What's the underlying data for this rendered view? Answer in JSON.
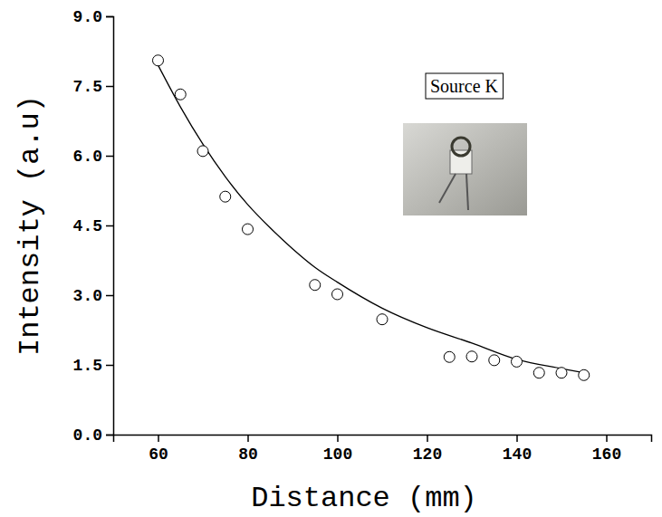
{
  "chart_data": {
    "type": "scatter",
    "x_label": "Distance (mm)",
    "y_label": "Intensity (a.u)",
    "annotations": [
      "Source K"
    ],
    "xlim": [
      50,
      170
    ],
    "xticks": [
      60,
      80,
      100,
      120,
      140,
      160
    ],
    "ylim": [
      0,
      9
    ],
    "yticks": [
      {
        "value": 0,
        "label": "0.0"
      },
      1.5,
      {
        "value": 3,
        "label": "3.0"
      },
      4.5,
      {
        "value": 6,
        "label": "6.0"
      },
      7.5,
      {
        "value": 9,
        "label": "9.0"
      }
    ],
    "grid": false,
    "series": [
      {
        "type": "scatter",
        "marker": "open-circle",
        "color": "#000000",
        "x": [
          60,
          65,
          70,
          75,
          80,
          95,
          100,
          110,
          125,
          130,
          135,
          140,
          145,
          150,
          155
        ],
        "values": [
          8.05,
          7.32,
          6.1,
          5.12,
          4.42,
          3.22,
          3.02,
          2.48,
          1.67,
          1.68,
          1.6,
          1.57,
          1.33,
          1.33,
          1.28
        ]
      },
      {
        "type": "line",
        "line_style": "solid",
        "color": "#000000",
        "x": [
          60,
          65,
          70,
          75,
          80,
          85,
          90,
          95,
          100,
          110,
          120,
          130,
          140,
          150,
          155
        ],
        "values": [
          7.95,
          7.05,
          6.25,
          5.55,
          4.95,
          4.45,
          4.0,
          3.6,
          3.28,
          2.72,
          2.3,
          1.97,
          1.62,
          1.42,
          1.33
        ]
      }
    ]
  }
}
